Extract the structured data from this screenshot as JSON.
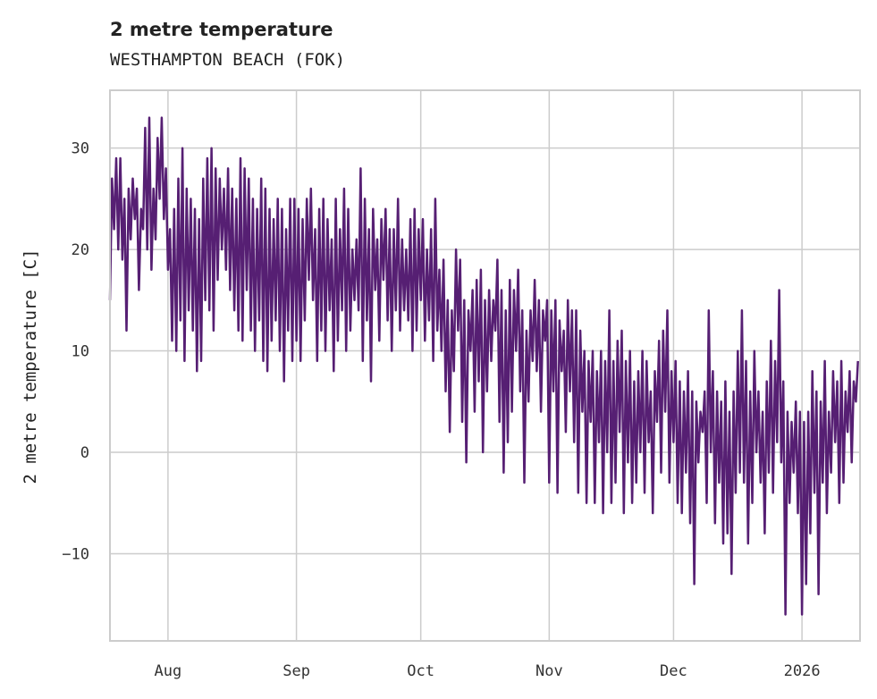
{
  "chart_data": {
    "type": "line",
    "title": "2 metre temperature",
    "subtitle": "WESTHAMPTON BEACH (FOK)",
    "xlabel": "",
    "ylabel": "2 metre temperature [C]",
    "ylim": [
      -18.6,
      35.7
    ],
    "xlim": [
      "2025-07-18",
      "2026-01-15"
    ],
    "grid": true,
    "line_color": "#561f73",
    "grid_color": "#cccccc",
    "x_start": "2025-07-18",
    "x_step_days": 0.5,
    "yticks": [
      {
        "value": 30,
        "label": "30"
      },
      {
        "value": 20,
        "label": "20"
      },
      {
        "value": 10,
        "label": "10"
      },
      {
        "value": 0,
        "label": "0"
      },
      {
        "value": -10,
        "label": "−10"
      }
    ],
    "xticks": [
      {
        "date": "2025-08-01",
        "label": "Aug"
      },
      {
        "date": "2025-09-01",
        "label": "Sep"
      },
      {
        "date": "2025-10-01",
        "label": "Oct"
      },
      {
        "date": "2025-11-01",
        "label": "Nov"
      },
      {
        "date": "2025-12-01",
        "label": "Dec"
      },
      {
        "date": "2026-01-01",
        "label": "2026"
      }
    ],
    "series": [
      {
        "name": "2 metre temperature",
        "values": [
          15,
          27,
          22,
          29,
          20,
          29,
          19,
          25,
          12,
          26,
          21,
          27,
          23,
          26,
          16,
          24,
          22,
          32,
          20,
          33,
          18,
          26,
          21,
          31,
          25,
          33,
          23,
          28,
          18,
          22,
          11,
          24,
          10,
          27,
          13,
          30,
          9,
          26,
          14,
          25,
          12,
          24,
          8,
          23,
          9,
          27,
          15,
          29,
          14,
          30,
          12,
          28,
          17,
          27,
          20,
          26,
          18,
          28,
          16,
          26,
          14,
          25,
          12,
          29,
          11,
          28,
          16,
          27,
          12,
          25,
          10,
          24,
          13,
          27,
          9,
          26,
          8,
          24,
          11,
          23,
          13,
          25,
          10,
          24,
          7,
          22,
          12,
          25,
          9,
          25,
          11,
          24,
          9,
          23,
          13,
          25,
          17,
          26,
          15,
          22,
          9,
          24,
          12,
          25,
          10,
          23,
          14,
          21,
          8,
          25,
          11,
          22,
          14,
          26,
          10,
          24,
          12,
          20,
          15,
          21,
          14,
          28,
          9,
          25,
          13,
          22,
          7,
          24,
          16,
          21,
          11,
          23,
          17,
          24,
          13,
          22,
          10,
          22,
          14,
          25,
          12,
          21,
          14,
          20,
          13,
          23,
          10,
          24,
          12,
          22,
          15,
          23,
          11,
          20,
          13,
          22,
          9,
          25,
          12,
          18,
          10,
          19,
          6,
          15,
          2,
          14,
          8,
          20,
          12,
          19,
          3,
          15,
          -1,
          14,
          10,
          16,
          4,
          17,
          7,
          18,
          0,
          15,
          6,
          16,
          9,
          15,
          12,
          19,
          3,
          16,
          -2,
          14,
          1,
          17,
          4,
          16,
          10,
          18,
          6,
          14,
          -3,
          12,
          5,
          14,
          9,
          17,
          8,
          15,
          4,
          14,
          11,
          15,
          -3,
          14,
          6,
          15,
          -4,
          13,
          8,
          12,
          2,
          15,
          6,
          14,
          1,
          14,
          -4,
          12,
          4,
          10,
          -5,
          9,
          3,
          10,
          -5,
          8,
          1,
          10,
          -6,
          9,
          0,
          14,
          -5,
          9,
          -3,
          11,
          2,
          12,
          -6,
          9,
          -1,
          10,
          -5,
          7,
          -3,
          8,
          0,
          10,
          -4,
          9,
          1,
          6,
          -6,
          8,
          3,
          11,
          -2,
          12,
          4,
          14,
          -3,
          8,
          1,
          9,
          -5,
          7,
          -6,
          6,
          -2,
          8,
          -7,
          6,
          -13,
          5,
          -1,
          4,
          2,
          6,
          -5,
          14,
          0,
          8,
          -7,
          6,
          -3,
          5,
          -9,
          7,
          -8,
          4,
          -12,
          6,
          -4,
          10,
          -2,
          14,
          -3,
          9,
          -9,
          6,
          -5,
          10,
          0,
          6,
          -3,
          4,
          -8,
          7,
          -2,
          11,
          -4,
          9,
          1,
          16,
          -1,
          7,
          -16,
          4,
          -5,
          3,
          -2,
          5,
          -6,
          4,
          -16,
          3,
          -13,
          4,
          -8,
          8,
          -4,
          6,
          -14,
          5,
          -3,
          9,
          -6,
          4,
          -2,
          8,
          1,
          7,
          -5,
          9,
          -3,
          6,
          2,
          8,
          -1,
          7,
          5,
          9
        ]
      }
    ]
  }
}
